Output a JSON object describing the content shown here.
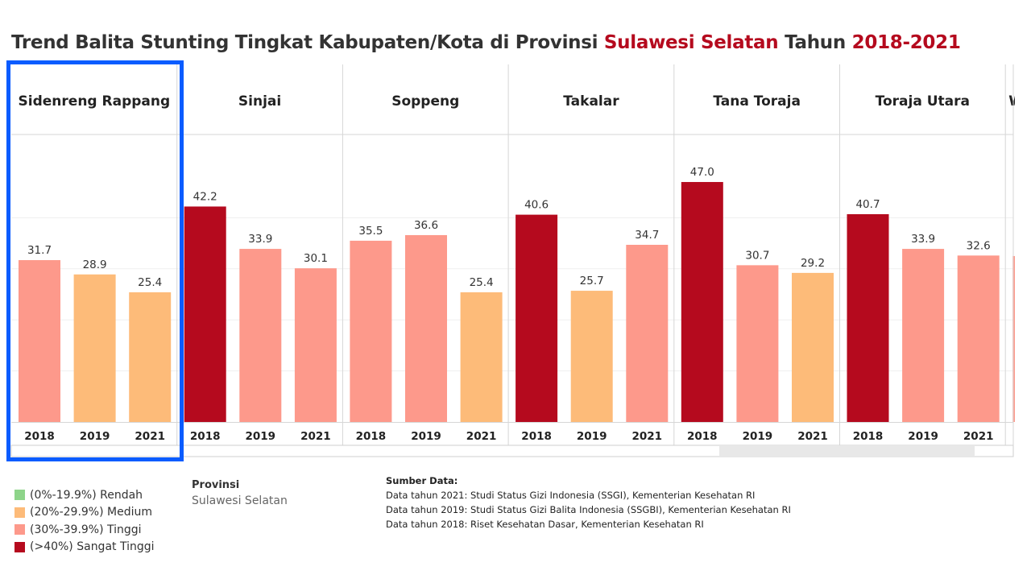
{
  "title": {
    "prefix": "Trend Balita Stunting Tingkat Kabupaten/Kota di Provinsi ",
    "province": "Sulawesi Selatan",
    "mid": " Tahun ",
    "years": "2018-2021"
  },
  "colors": {
    "rendah": "#8ed48a",
    "medium": "#fdbb79",
    "tinggi": "#fd998b",
    "sangat_tinggi": "#b50a1e",
    "highlight": "#0a5cff",
    "title_accent": "#b50a1e"
  },
  "chart_data": {
    "type": "bar",
    "ylim": [
      0,
      50
    ],
    "grid": true,
    "categories": [
      "2018",
      "2019",
      "2021"
    ],
    "panels": [
      {
        "name": "Sidenreng Rappang",
        "values": [
          31.7,
          28.9,
          25.4
        ],
        "labels": [
          "31.7",
          "28.9",
          "25.4"
        ],
        "highlighted": true
      },
      {
        "name": "Sinjai",
        "values": [
          42.2,
          33.9,
          30.1
        ],
        "labels": [
          "42.2",
          "33.9",
          "30.1"
        ]
      },
      {
        "name": "Soppeng",
        "values": [
          35.5,
          36.6,
          25.4
        ],
        "labels": [
          "35.5",
          "36.6",
          "25.4"
        ]
      },
      {
        "name": "Takalar",
        "values": [
          40.6,
          25.7,
          34.7
        ],
        "labels": [
          "40.6",
          "25.7",
          "34.7"
        ]
      },
      {
        "name": "Tana Toraja",
        "values": [
          47.0,
          30.7,
          29.2
        ],
        "labels": [
          "47.0",
          "30.7",
          "29.2"
        ]
      },
      {
        "name": "Toraja Utara",
        "values": [
          40.7,
          33.9,
          32.6
        ],
        "labels": [
          "40.7",
          "33.9",
          "32.6"
        ]
      },
      {
        "name": "W",
        "values": [
          32.5
        ],
        "labels": [
          ""
        ],
        "partial": true
      }
    ]
  },
  "legend": {
    "items": [
      {
        "label": "(0%-19.9%) Rendah",
        "color": "#8ed48a"
      },
      {
        "label": "(20%-29.9%) Medium",
        "color": "#fdbb79"
      },
      {
        "label": "(30%-39.9%) Tinggi",
        "color": "#fd998b"
      },
      {
        "label": "(>40%) Sangat Tinggi",
        "color": "#b50a1e"
      }
    ]
  },
  "filter": {
    "label": "Provinsi",
    "value": "Sulawesi Selatan"
  },
  "source": {
    "heading": "Sumber Data:",
    "lines": [
      "Data tahun 2021: Studi Status Gizi Indonesia (SSGI), Kementerian Kesehatan RI",
      "Data tahun 2019: Studi Status Gizi Balita Indonesia (SSGBI), Kementerian Kesehatan RI",
      "Data tahun 2018: Riset Kesehatan Dasar, Kementerian Kesehatan RI"
    ]
  }
}
